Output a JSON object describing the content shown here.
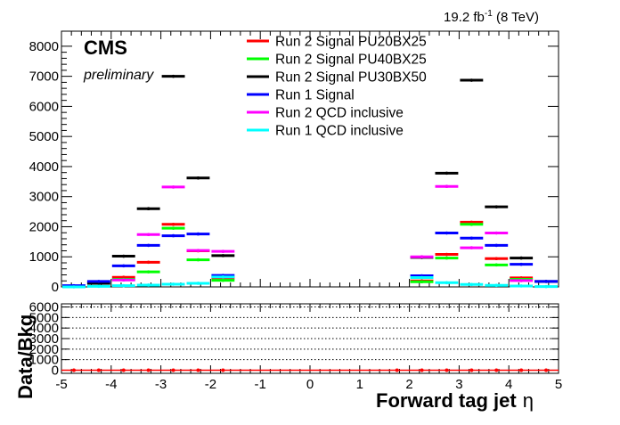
{
  "header": {
    "lumi_value": "19.2 fb",
    "lumi_exp": "-1",
    "lumi_tail": " (8 TeV)",
    "experiment": "CMS",
    "status": "preliminary"
  },
  "chart_data": {
    "type": "histogram",
    "xlabel": "Forward tag jet",
    "xlabel_symbol": "η",
    "ratio_ylabel": "Data/Bkg",
    "xlim": [
      -5,
      5
    ],
    "ylim": [
      0,
      8500
    ],
    "ratio_ylim": [
      -300,
      6300
    ],
    "x_ticks": [
      -5,
      -4,
      -3,
      -2,
      -1,
      0,
      1,
      2,
      3,
      4,
      5
    ],
    "y_ticks": [
      0,
      1000,
      2000,
      3000,
      4000,
      5000,
      6000,
      7000,
      8000
    ],
    "ratio_y_ticks": [
      0,
      1000,
      2000,
      3000,
      4000,
      5000,
      6000
    ],
    "ratio_grid": [
      1000,
      2000,
      3000,
      4000,
      5000,
      6000
    ],
    "legend_position": "top-center",
    "bins": [
      -4.75,
      -4.25,
      -3.75,
      -3.25,
      -2.75,
      -2.25,
      -1.75,
      -1.25,
      -0.75,
      -0.25,
      0.25,
      0.75,
      1.25,
      1.75,
      2.25,
      2.75,
      3.25,
      3.75,
      4.25,
      4.75
    ],
    "bin_width": 0.5,
    "series": [
      {
        "name": "Run 2 Signal PU20BX25",
        "color": "#ff0000",
        "values": [
          null,
          null,
          320,
          820,
          2080,
          1200,
          290,
          null,
          null,
          null,
          null,
          null,
          null,
          null,
          200,
          1080,
          2150,
          940,
          300,
          null
        ]
      },
      {
        "name": "Run 2 Signal PU40BX25",
        "color": "#00ff00",
        "values": [
          null,
          null,
          250,
          500,
          1950,
          900,
          220,
          null,
          null,
          null,
          null,
          null,
          null,
          null,
          170,
          960,
          2080,
          730,
          250,
          null
        ]
      },
      {
        "name": "Run 2 Signal PU30BX50",
        "color": "#000000",
        "values": [
          30,
          120,
          1020,
          2600,
          7000,
          3620,
          1040,
          null,
          null,
          null,
          null,
          null,
          null,
          null,
          980,
          3780,
          6870,
          2660,
          960,
          180
        ]
      },
      {
        "name": "Run 1 Signal",
        "color": "#0000ff",
        "values": [
          40,
          180,
          700,
          1380,
          1700,
          1760,
          380,
          null,
          null,
          null,
          null,
          null,
          null,
          null,
          370,
          1790,
          1620,
          1380,
          750,
          180
        ]
      },
      {
        "name": "Run 2 QCD inclusive",
        "color": "#ff00ff",
        "values": [
          null,
          null,
          230,
          1740,
          3320,
          1210,
          1180,
          null,
          null,
          null,
          null,
          null,
          null,
          null,
          1000,
          3340,
          1300,
          1790,
          210,
          null
        ]
      },
      {
        "name": "Run 1 QCD inclusive",
        "color": "#00ffff",
        "values": [
          0,
          20,
          40,
          60,
          90,
          120,
          330,
          null,
          null,
          null,
          null,
          null,
          null,
          null,
          310,
          140,
          80,
          50,
          30,
          10
        ]
      }
    ],
    "ratio_points": {
      "color": "#ff0000",
      "x": [
        -4.75,
        -4.25,
        -3.75,
        -3.25,
        -2.75,
        -2.25,
        -1.75,
        1.75,
        2.25,
        2.75,
        3.25,
        3.75,
        4.25,
        4.75
      ],
      "y": [
        0,
        0,
        0,
        0,
        0,
        0,
        0,
        0,
        0,
        0,
        0,
        0,
        0,
        0
      ]
    }
  }
}
